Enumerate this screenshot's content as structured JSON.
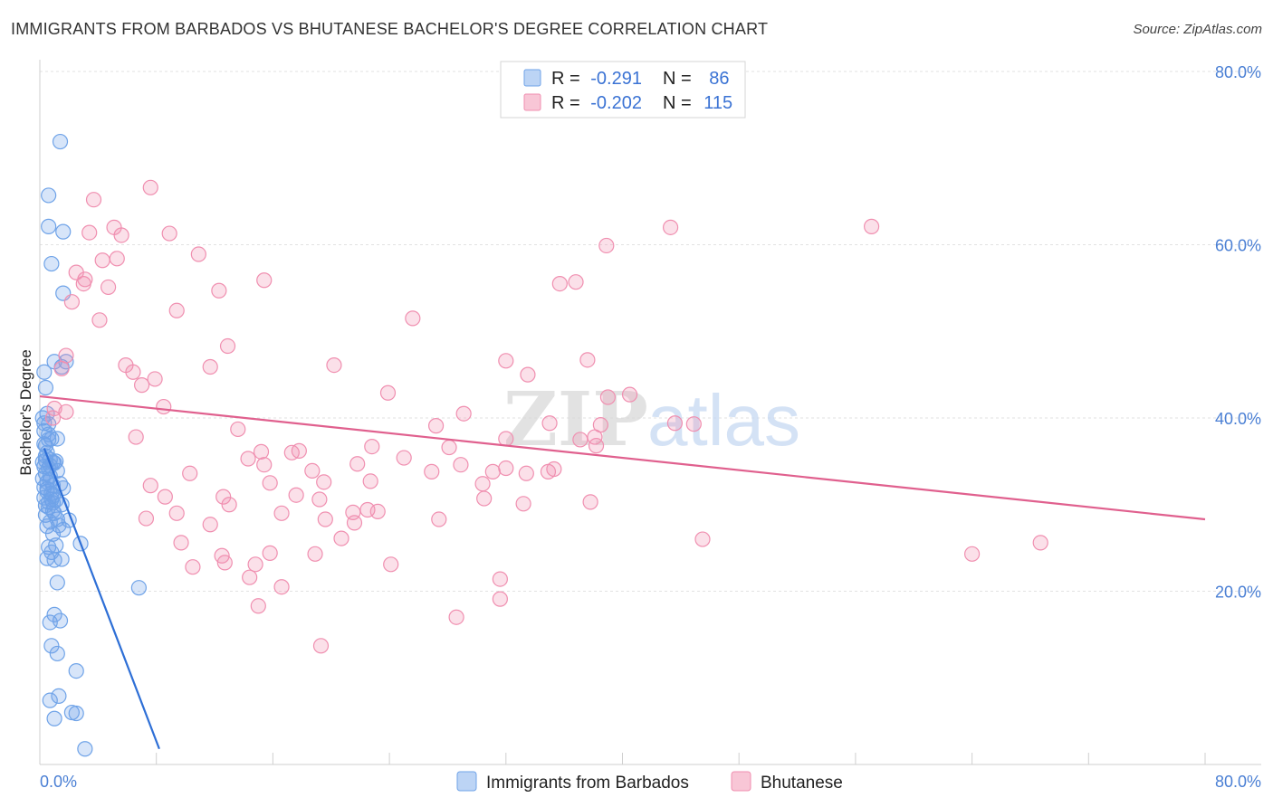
{
  "title": "IMMIGRANTS FROM BARBADOS VS BHUTANESE BACHELOR'S DEGREE CORRELATION CHART",
  "source": "Source: ZipAtlas.com",
  "chart_data": {
    "type": "scatter",
    "xlabel": "",
    "ylabel": "Bachelor's Degree",
    "xlim": [
      0,
      80
    ],
    "ylim": [
      0,
      80
    ],
    "x_tick_labels": [
      "0.0%",
      "80.0%"
    ],
    "y_ticks": [
      {
        "value": 20,
        "label": "20.0%"
      },
      {
        "value": 40,
        "label": "40.0%"
      },
      {
        "value": 60,
        "label": "60.0%"
      },
      {
        "value": 80,
        "label": "80.0%"
      }
    ],
    "grid": true,
    "watermark": {
      "zip": "ZIP",
      "atlas": "atlas"
    },
    "legend_stats": [
      {
        "r_label": "R =",
        "r_value": "-0.291",
        "n_label": "N =",
        "n_value": "86"
      },
      {
        "r_label": "R =",
        "r_value": "-0.202",
        "n_label": "N =",
        "n_value": "115"
      }
    ],
    "series": [
      {
        "name": "Immigrants from Barbados",
        "color": "#6fa3e8",
        "line_color": "#2e6fd6",
        "trend": {
          "x0": 0.3,
          "y0": 36.5,
          "x1": 8.2,
          "y1": 1.8
        },
        "points": [
          [
            1.4,
            71.9
          ],
          [
            0.6,
            65.7
          ],
          [
            0.6,
            62.1
          ],
          [
            1.6,
            61.5
          ],
          [
            0.8,
            57.8
          ],
          [
            1.6,
            54.4
          ],
          [
            1.8,
            46.5
          ],
          [
            1.5,
            45.9
          ],
          [
            0.3,
            45.3
          ],
          [
            1.0,
            46.5
          ],
          [
            0.4,
            43.5
          ],
          [
            0.5,
            40.5
          ],
          [
            0.2,
            40.0
          ],
          [
            0.6,
            39.3
          ],
          [
            0.3,
            38.5
          ],
          [
            0.8,
            37.6
          ],
          [
            1.2,
            37.6
          ],
          [
            0.3,
            37.0
          ],
          [
            0.5,
            36.0
          ],
          [
            0.7,
            35.2
          ],
          [
            0.9,
            34.9
          ],
          [
            0.3,
            34.4
          ],
          [
            0.6,
            34.2
          ],
          [
            1.0,
            34.8
          ],
          [
            0.4,
            33.6
          ],
          [
            0.7,
            32.8
          ],
          [
            0.9,
            32.2
          ],
          [
            1.4,
            32.4
          ],
          [
            1.6,
            31.9
          ],
          [
            0.5,
            31.5
          ],
          [
            0.8,
            31.3
          ],
          [
            0.3,
            30.8
          ],
          [
            1.1,
            30.5
          ],
          [
            1.5,
            30.0
          ],
          [
            0.6,
            29.7
          ],
          [
            0.9,
            29.3
          ],
          [
            0.4,
            28.8
          ],
          [
            1.2,
            28.3
          ],
          [
            2.0,
            28.2
          ],
          [
            0.7,
            28.0
          ],
          [
            1.3,
            27.6
          ],
          [
            1.6,
            27.1
          ],
          [
            0.9,
            26.6
          ],
          [
            2.8,
            25.5
          ],
          [
            1.1,
            25.3
          ],
          [
            0.6,
            25.1
          ],
          [
            0.8,
            24.5
          ],
          [
            0.5,
            23.8
          ],
          [
            1.0,
            23.6
          ],
          [
            1.5,
            23.7
          ],
          [
            1.2,
            21.0
          ],
          [
            6.8,
            20.4
          ],
          [
            1.0,
            17.3
          ],
          [
            1.4,
            16.6
          ],
          [
            0.7,
            16.4
          ],
          [
            0.8,
            13.7
          ],
          [
            1.2,
            12.8
          ],
          [
            2.5,
            10.8
          ],
          [
            0.7,
            7.4
          ],
          [
            1.3,
            7.9
          ],
          [
            2.2,
            6.0
          ],
          [
            2.5,
            5.9
          ],
          [
            1.0,
            5.3
          ],
          [
            3.1,
            1.8
          ],
          [
            0.4,
            35.6
          ],
          [
            0.2,
            33.0
          ],
          [
            0.5,
            31.8
          ],
          [
            0.9,
            30.2
          ],
          [
            0.4,
            36.8
          ],
          [
            0.6,
            38.1
          ],
          [
            0.2,
            34.9
          ],
          [
            1.1,
            35.0
          ],
          [
            0.7,
            33.3
          ],
          [
            0.3,
            32.0
          ],
          [
            0.8,
            30.6
          ],
          [
            1.0,
            29.0
          ],
          [
            0.5,
            27.5
          ],
          [
            0.6,
            37.5
          ],
          [
            0.3,
            39.4
          ],
          [
            0.4,
            35.1
          ],
          [
            0.7,
            34.5
          ],
          [
            1.2,
            33.9
          ],
          [
            0.5,
            32.6
          ],
          [
            0.9,
            31.0
          ],
          [
            0.6,
            30.3
          ],
          [
            0.4,
            29.9
          ]
        ]
      },
      {
        "name": "Bhutanese",
        "color": "#f08fb0",
        "line_color": "#e0608e",
        "trend": {
          "x0": 0.0,
          "y0": 42.5,
          "x1": 80.0,
          "y1": 28.3
        },
        "points": [
          [
            7.6,
            66.6
          ],
          [
            3.7,
            65.2
          ],
          [
            5.1,
            62.0
          ],
          [
            3.4,
            61.4
          ],
          [
            5.6,
            61.1
          ],
          [
            8.9,
            61.3
          ],
          [
            10.9,
            58.9
          ],
          [
            2.5,
            56.8
          ],
          [
            4.3,
            58.2
          ],
          [
            5.3,
            58.4
          ],
          [
            3.0,
            55.5
          ],
          [
            3.1,
            56.0
          ],
          [
            4.7,
            55.1
          ],
          [
            12.3,
            54.7
          ],
          [
            15.4,
            55.9
          ],
          [
            2.2,
            53.4
          ],
          [
            9.4,
            52.4
          ],
          [
            4.1,
            51.3
          ],
          [
            25.6,
            51.5
          ],
          [
            12.9,
            48.3
          ],
          [
            1.8,
            47.2
          ],
          [
            1.5,
            45.7
          ],
          [
            5.9,
            46.1
          ],
          [
            6.4,
            45.3
          ],
          [
            7.9,
            44.5
          ],
          [
            11.7,
            45.9
          ],
          [
            20.2,
            46.1
          ],
          [
            32.0,
            46.6
          ],
          [
            33.5,
            45.0
          ],
          [
            37.6,
            46.7
          ],
          [
            7.0,
            43.8
          ],
          [
            8.5,
            41.3
          ],
          [
            23.9,
            42.9
          ],
          [
            39.0,
            42.4
          ],
          [
            40.5,
            42.7
          ],
          [
            1.0,
            41.1
          ],
          [
            1.8,
            40.7
          ],
          [
            0.9,
            40.0
          ],
          [
            29.1,
            40.5
          ],
          [
            27.2,
            39.1
          ],
          [
            35.0,
            39.4
          ],
          [
            38.5,
            39.2
          ],
          [
            43.6,
            39.4
          ],
          [
            44.9,
            39.3
          ],
          [
            13.6,
            38.7
          ],
          [
            6.6,
            37.8
          ],
          [
            32.0,
            37.6
          ],
          [
            37.1,
            37.5
          ],
          [
            38.1,
            37.8
          ],
          [
            38.2,
            36.8
          ],
          [
            22.8,
            36.7
          ],
          [
            28.1,
            36.6
          ],
          [
            15.2,
            36.1
          ],
          [
            17.3,
            36.0
          ],
          [
            17.8,
            36.2
          ],
          [
            14.3,
            35.3
          ],
          [
            25.0,
            35.4
          ],
          [
            15.4,
            34.6
          ],
          [
            21.8,
            34.7
          ],
          [
            28.9,
            34.6
          ],
          [
            32.0,
            34.2
          ],
          [
            34.9,
            33.8
          ],
          [
            35.3,
            34.1
          ],
          [
            10.3,
            33.6
          ],
          [
            18.7,
            33.9
          ],
          [
            26.9,
            33.8
          ],
          [
            31.1,
            33.8
          ],
          [
            7.6,
            32.2
          ],
          [
            15.8,
            32.5
          ],
          [
            19.5,
            32.6
          ],
          [
            22.7,
            32.7
          ],
          [
            30.4,
            32.4
          ],
          [
            33.4,
            33.6
          ],
          [
            8.6,
            30.9
          ],
          [
            12.6,
            30.9
          ],
          [
            13.0,
            30.0
          ],
          [
            17.6,
            31.1
          ],
          [
            19.2,
            30.6
          ],
          [
            30.5,
            30.7
          ],
          [
            33.2,
            30.1
          ],
          [
            37.8,
            30.3
          ],
          [
            9.4,
            29.0
          ],
          [
            16.6,
            29.0
          ],
          [
            21.5,
            29.1
          ],
          [
            22.5,
            29.4
          ],
          [
            23.2,
            29.2
          ],
          [
            7.3,
            28.4
          ],
          [
            19.6,
            28.3
          ],
          [
            21.6,
            27.9
          ],
          [
            27.4,
            28.3
          ],
          [
            11.7,
            27.7
          ],
          [
            20.7,
            26.1
          ],
          [
            9.7,
            25.6
          ],
          [
            45.5,
            26.0
          ],
          [
            64.0,
            24.3
          ],
          [
            68.7,
            25.6
          ],
          [
            12.5,
            24.1
          ],
          [
            15.8,
            24.4
          ],
          [
            18.9,
            24.3
          ],
          [
            12.7,
            23.3
          ],
          [
            14.8,
            23.1
          ],
          [
            10.5,
            22.8
          ],
          [
            24.1,
            23.1
          ],
          [
            14.4,
            21.6
          ],
          [
            16.6,
            20.5
          ],
          [
            31.6,
            21.4
          ],
          [
            31.6,
            19.1
          ],
          [
            15.0,
            18.3
          ],
          [
            28.6,
            17.0
          ],
          [
            19.3,
            13.7
          ],
          [
            38.9,
            59.9
          ],
          [
            43.3,
            62.0
          ],
          [
            57.1,
            62.1
          ],
          [
            35.7,
            55.5
          ],
          [
            36.8,
            55.7
          ]
        ]
      }
    ]
  }
}
